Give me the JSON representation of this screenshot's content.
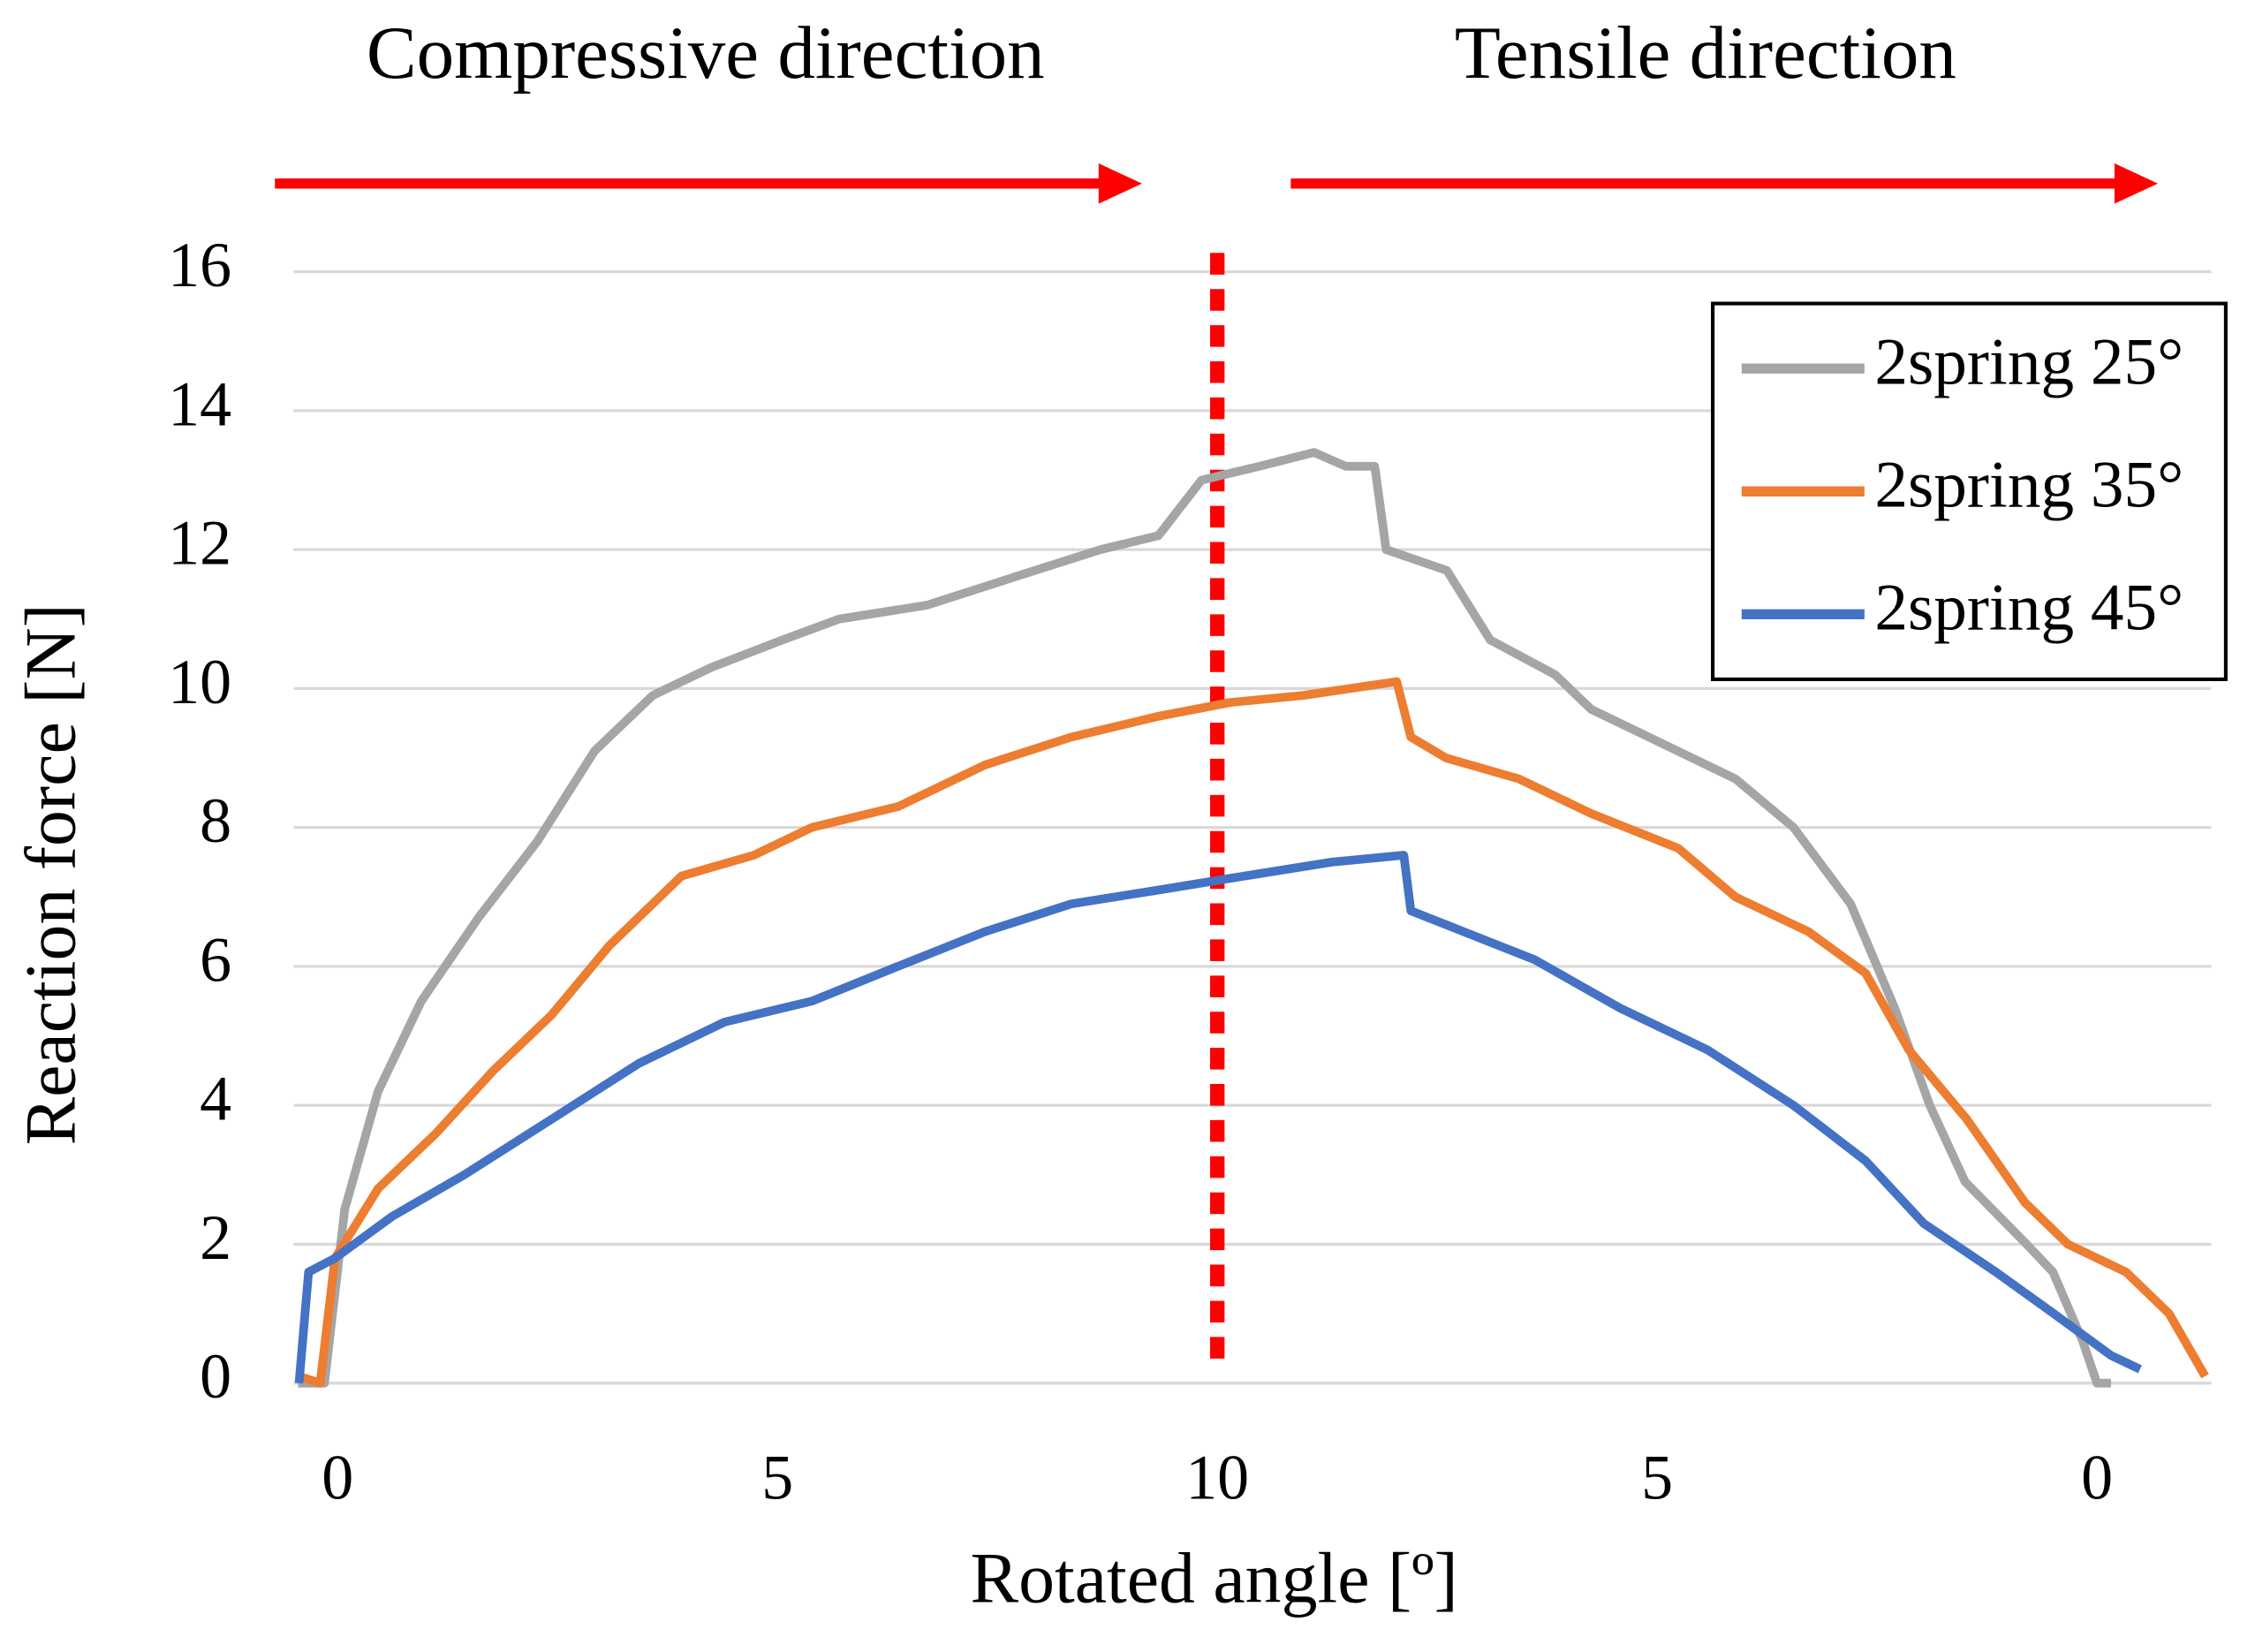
{
  "chart_data": {
    "type": "line",
    "annotations": [
      "Compressive direction",
      "Tensile direction"
    ],
    "x_label": "Rotated angle [º]",
    "y_label": "Reaction force [N]",
    "xlim": [
      -0.5,
      21.3
    ],
    "ylim": [
      0,
      16
    ],
    "xticks": [
      0,
      5,
      10,
      {
        "value": 15,
        "label": "5"
      },
      {
        "value": 20,
        "label": "0"
      }
    ],
    "yticks": [
      0,
      2,
      4,
      6,
      8,
      10,
      12,
      14,
      16
    ],
    "grid": true,
    "legend": "upper right",
    "series": [
      {
        "name": "2spring 25°",
        "color": "#a5a5a5",
        "x": [
          -0.45,
          -0.15,
          0.08,
          0.46,
          0.95,
          1.6,
          2.27,
          2.92,
          3.58,
          4.24,
          5.06,
          5.7,
          6.7,
          7.68,
          8.67,
          9.33,
          9.82,
          10.48,
          11.1,
          11.46,
          11.79,
          11.92,
          12.61,
          13.1,
          13.84,
          14.25,
          15.07,
          15.89,
          16.55,
          17.2,
          17.7,
          18.1,
          18.5,
          19.2,
          19.5,
          19.84,
          20.0,
          20.16
        ],
        "values": [
          0,
          0,
          2.5,
          4.2,
          5.5,
          6.7,
          7.8,
          9.1,
          9.9,
          10.3,
          10.7,
          11.0,
          11.2,
          11.6,
          12.0,
          12.2,
          13.0,
          13.2,
          13.4,
          13.2,
          13.2,
          12.0,
          11.7,
          10.7,
          10.2,
          9.7,
          9.2,
          8.7,
          8.0,
          6.9,
          5.4,
          4.0,
          2.9,
          2.0,
          1.6,
          0.6,
          0,
          0
        ]
      },
      {
        "name": "2spring 35°",
        "color": "#ed7d31",
        "x": [
          -0.44,
          -0.2,
          -0.03,
          0.46,
          1.12,
          1.77,
          2.43,
          3.09,
          3.91,
          4.73,
          5.39,
          6.37,
          7.36,
          8.34,
          9.33,
          10.15,
          10.97,
          12.04,
          12.2,
          12.6,
          13.43,
          14.25,
          15.24,
          15.89,
          16.72,
          17.37,
          17.86,
          18.52,
          19.18,
          19.67,
          20.33,
          20.82,
          21.23
        ],
        "values": [
          0.1,
          0,
          1.8,
          2.8,
          3.6,
          4.5,
          5.3,
          6.3,
          7.3,
          7.6,
          8.0,
          8.3,
          8.9,
          9.3,
          9.6,
          9.8,
          9.9,
          10.1,
          9.3,
          9.0,
          8.7,
          8.2,
          7.7,
          7.0,
          6.5,
          5.9,
          4.8,
          3.8,
          2.6,
          2.0,
          1.6,
          1.0,
          0.1
        ]
      },
      {
        "name": "2spring 45°",
        "color": "#4472c4",
        "x": [
          -0.44,
          -0.33,
          -0.03,
          0.62,
          1.44,
          2.43,
          3.42,
          4.4,
          5.39,
          6.37,
          7.36,
          8.34,
          9.33,
          10.31,
          11.3,
          12.12,
          12.2,
          12.6,
          13.6,
          14.58,
          15.57,
          16.55,
          17.37,
          18.03,
          18.85,
          19.51,
          20.16,
          20.49
        ],
        "values": [
          0,
          1.6,
          1.8,
          2.4,
          3.0,
          3.8,
          4.6,
          5.2,
          5.5,
          6.0,
          6.5,
          6.9,
          7.1,
          7.3,
          7.5,
          7.6,
          6.8,
          6.6,
          6.1,
          5.4,
          4.8,
          4.0,
          3.2,
          2.3,
          1.6,
          1.0,
          0.4,
          0.2
        ]
      }
    ]
  }
}
